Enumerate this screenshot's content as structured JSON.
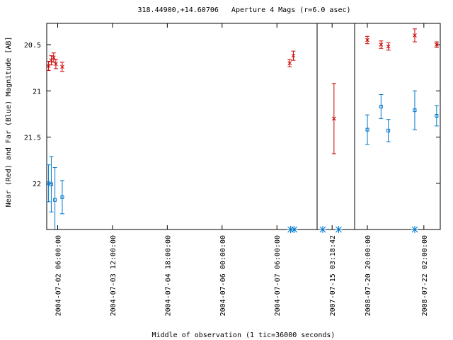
{
  "chart_data": {
    "type": "scatter",
    "title": "318.44900,+14.60706   Aperture 4 Mags (r=6.0 asec)",
    "xlabel": "Middle of observation (1 tic=36000 seconds)",
    "ylabel": "Near (Red) and Far (Blue) Magnitude [AB]",
    "y_reversed": true,
    "ylim": [
      22.5,
      20.27
    ],
    "y_ticks": [
      "20.5",
      "21",
      "21.5",
      "22"
    ],
    "x_ticks": [
      "2004-07-02 06:00:00",
      "2004-07-03 12:00:00",
      "2004-07-04 18:00:00",
      "2004-07-06 00:00:00",
      "2004-07-07 06:00:00",
      "2007-07-15 03:18:42",
      "2008-07-20 20:00:00",
      "2008-07-22 02:00:00"
    ],
    "colors": {
      "near": "#cc0000",
      "far": "#0077cc",
      "axis": "#000000"
    },
    "segments": [
      {
        "x0": 0,
        "x1": 14.8,
        "tick_x": [
          0.6,
          3.6,
          6.6,
          9.6,
          12.6
        ]
      },
      {
        "x0": 0,
        "x1": 2,
        "tick_x": [
          0.8
        ]
      },
      {
        "x0": 0,
        "x1": 4.7,
        "tick_x": [
          0.7,
          3.8
        ]
      }
    ],
    "series": [
      {
        "name": "Near",
        "marker": "x",
        "points": [
          {
            "seg": 0,
            "x": 0.1,
            "y": 20.73,
            "err": 0.05
          },
          {
            "seg": 0,
            "x": 0.25,
            "y": 20.67,
            "err": 0.05
          },
          {
            "seg": 0,
            "x": 0.38,
            "y": 20.64,
            "err": 0.05
          },
          {
            "seg": 0,
            "x": 0.5,
            "y": 20.71,
            "err": 0.05
          },
          {
            "seg": 0,
            "x": 0.85,
            "y": 20.74,
            "err": 0.05
          },
          {
            "seg": 0,
            "x": 13.3,
            "y": 20.7,
            "err": 0.04
          },
          {
            "seg": 0,
            "x": 13.5,
            "y": 20.62,
            "err": 0.05
          },
          {
            "seg": 1,
            "x": 0.9,
            "y": 21.3,
            "err": 0.38
          },
          {
            "seg": 2,
            "x": 0.7,
            "y": 20.45,
            "err": 0.04
          },
          {
            "seg": 2,
            "x": 1.45,
            "y": 20.5,
            "err": 0.04
          },
          {
            "seg": 2,
            "x": 1.85,
            "y": 20.52,
            "err": 0.04
          },
          {
            "seg": 2,
            "x": 3.3,
            "y": 20.4,
            "err": 0.07
          },
          {
            "seg": 2,
            "x": 4.5,
            "y": 20.5,
            "err": 0.03
          }
        ]
      },
      {
        "name": "Far",
        "marker": "square",
        "points": [
          {
            "seg": 0,
            "x": 0.1,
            "y": 22.0,
            "err": 0.2
          },
          {
            "seg": 0,
            "x": 0.25,
            "y": 22.01,
            "err": 0.3
          },
          {
            "seg": 0,
            "x": 0.45,
            "y": 22.18,
            "err": 0.35
          },
          {
            "seg": 0,
            "x": 0.85,
            "y": 22.15,
            "err": 0.18
          },
          {
            "seg": 2,
            "x": 0.7,
            "y": 21.42,
            "err": 0.16
          },
          {
            "seg": 2,
            "x": 1.45,
            "y": 21.17,
            "err": 0.13
          },
          {
            "seg": 2,
            "x": 1.85,
            "y": 21.43,
            "err": 0.12
          },
          {
            "seg": 2,
            "x": 3.3,
            "y": 21.21,
            "err": 0.21
          },
          {
            "seg": 2,
            "x": 4.5,
            "y": 21.27,
            "err": 0.11
          }
        ]
      },
      {
        "name": "Far limit",
        "marker": "asterisk",
        "points": [
          {
            "seg": 0,
            "x": 13.35,
            "y": 22.5
          },
          {
            "seg": 0,
            "x": 13.55,
            "y": 22.5
          },
          {
            "seg": 1,
            "x": 0.3,
            "y": 22.5
          },
          {
            "seg": 1,
            "x": 1.15,
            "y": 22.5
          },
          {
            "seg": 2,
            "x": 3.3,
            "y": 22.5
          }
        ]
      }
    ]
  }
}
